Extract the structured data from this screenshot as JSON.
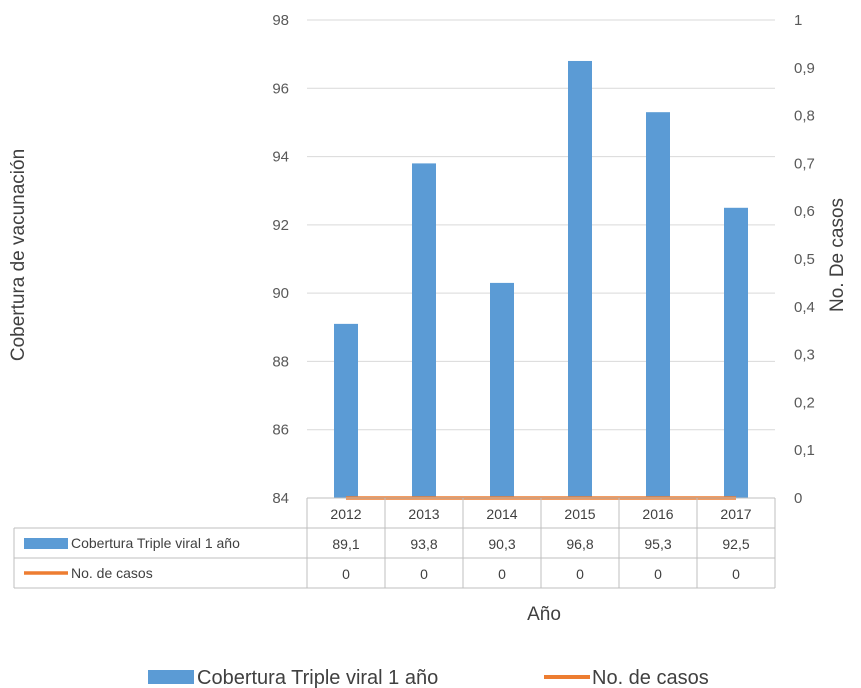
{
  "chart_data": {
    "type": "bar",
    "categories": [
      "2012",
      "2013",
      "2014",
      "2015",
      "2016",
      "2017"
    ],
    "series": [
      {
        "name": "Cobertura Triple viral 1 año",
        "type": "bar",
        "axis": "left",
        "color": "#5b9bd5",
        "values": [
          89.1,
          93.8,
          90.3,
          96.8,
          95.3,
          92.5
        ],
        "labels": [
          "89,1",
          "93,8",
          "90,3",
          "96,8",
          "95,3",
          "92,5"
        ]
      },
      {
        "name": "No. de casos",
        "type": "line",
        "axis": "right",
        "color": "#ed7d31",
        "values": [
          0,
          0,
          0,
          0,
          0,
          0
        ],
        "labels": [
          "0",
          "0",
          "0",
          "0",
          "0",
          "0"
        ]
      }
    ],
    "xlabel": "Año",
    "ylabel": "Cobertura de vacunación",
    "y2label": "No. De casos",
    "ylim": [
      84,
      98
    ],
    "y2lim": [
      0,
      1
    ],
    "yticks": [
      "84",
      "86",
      "88",
      "90",
      "92",
      "94",
      "96",
      "98"
    ],
    "y2ticks": [
      "0",
      "0,1",
      "0,2",
      "0,3",
      "0,4",
      "0,5",
      "0,6",
      "0,7",
      "0,8",
      "0,9",
      "1"
    ],
    "grid": true,
    "data_table": true,
    "legend_position": "bottom"
  }
}
